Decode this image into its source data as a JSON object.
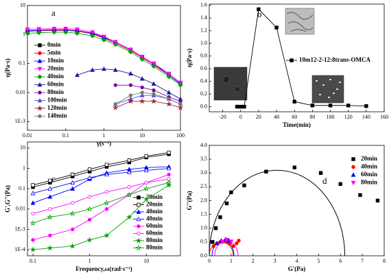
{
  "chart_data": [
    {
      "type": "line",
      "label": "a",
      "xlabel": "γ(s⁻¹)",
      "ylabel": "η(Pa·s)",
      "xlog": true,
      "ylog": true,
      "xlim": [
        0.01,
        100
      ],
      "ylim": [
        0.0005,
        10
      ],
      "xticks": [
        0.01,
        0.1,
        1,
        10,
        100
      ],
      "yticks": [
        {
          "value": 0.001,
          "label": "1E-3"
        },
        0.01,
        0.1,
        1,
        10
      ],
      "legend": "left",
      "x": [
        0.01,
        0.02,
        0.05,
        0.1,
        0.2,
        0.5,
        1,
        2,
        5,
        10,
        20,
        50,
        100
      ],
      "series": [
        {
          "name": "0min",
          "color": "#000000",
          "marker": "square",
          "values": [
            1.3,
            1.35,
            1.4,
            1.4,
            1.35,
            1.1,
            0.8,
            0.55,
            0.3,
            0.17,
            0.1,
            0.04,
            0.02
          ]
        },
        {
          "name": "5min",
          "color": "#ff0000",
          "marker": "circle",
          "values": [
            1.3,
            1.35,
            1.4,
            1.4,
            1.3,
            1.05,
            0.75,
            0.5,
            0.28,
            0.16,
            0.09,
            0.04,
            0.02
          ]
        },
        {
          "name": "10min",
          "color": "#0000ff",
          "marker": "triangle",
          "values": [
            1.35,
            1.4,
            1.45,
            1.45,
            1.35,
            1.1,
            0.8,
            0.55,
            0.3,
            0.17,
            0.1,
            0.04,
            0.02
          ]
        },
        {
          "name": "20min",
          "color": "#ff00ff",
          "marker": "triangle-down",
          "values": [
            1.5,
            1.55,
            1.6,
            1.6,
            1.5,
            1.2,
            0.85,
            0.55,
            0.3,
            0.17,
            0.1,
            0.045,
            0.022
          ]
        },
        {
          "name": "40min",
          "color": "#00a000",
          "marker": "diamond",
          "values": [
            1.1,
            1.15,
            1.2,
            1.2,
            1.1,
            0.9,
            0.65,
            0.45,
            0.25,
            0.14,
            0.08,
            0.035,
            0.018
          ]
        },
        {
          "name": "60min",
          "color": "#1a1aa0",
          "marker": "triangle",
          "values": [
            null,
            null,
            null,
            null,
            0.04,
            0.06,
            0.065,
            0.06,
            0.045,
            0.03,
            0.02,
            0.01,
            0.006
          ]
        },
        {
          "name": "80min",
          "color": "#8000a0",
          "marker": "circle",
          "values": [
            null,
            null,
            null,
            null,
            null,
            null,
            null,
            0.018,
            0.018,
            0.015,
            0.012,
            0.007,
            0.005
          ]
        },
        {
          "name": "100min",
          "color": "#5050e0",
          "marker": "triangle",
          "values": [
            null,
            null,
            null,
            null,
            null,
            null,
            null,
            0.004,
            0.006,
            0.008,
            0.008,
            0.006,
            0.004
          ]
        },
        {
          "name": "120min",
          "color": "#a02040",
          "marker": "star",
          "values": [
            null,
            null,
            null,
            null,
            null,
            null,
            null,
            0.003,
            0.005,
            0.005,
            0.005,
            0.004,
            0.003
          ]
        },
        {
          "name": "140min",
          "color": "#708070",
          "marker": "circle",
          "values": [
            null,
            null,
            null,
            null,
            null,
            null,
            null,
            0.004,
            0.008,
            0.01,
            0.009,
            0.006,
            0.004
          ]
        }
      ]
    },
    {
      "type": "line",
      "label": "b",
      "xlabel": "Time(min)",
      "ylabel": "η(Pa·s)",
      "xlog": false,
      "ylog": false,
      "xlim": [
        -35,
        160
      ],
      "ylim": [
        -0.08,
        1.62
      ],
      "xticks": [
        -20,
        0,
        20,
        40,
        60,
        80,
        100,
        120,
        140,
        160
      ],
      "yticks": [
        {
          "value": 0,
          "label": "0.0"
        },
        0.2,
        0.4,
        0.6,
        0.8,
        {
          "value": 1,
          "label": "1.0"
        },
        1.2,
        1.4,
        1.6
      ],
      "legend": "middle",
      "x": [
        -4,
        0,
        4,
        20,
        40,
        60,
        80,
        100,
        120,
        140
      ],
      "series": [
        {
          "name": "10m12-2-12:8trans-OMCA",
          "color": "#000000",
          "marker": "square",
          "values": [
            0.0,
            0.0,
            0.0,
            1.54,
            1.25,
            0.08,
            0.02,
            0.02,
            0.02,
            0.01
          ]
        }
      ]
    },
    {
      "type": "line",
      "label": "c",
      "xlabel": "Frequency,ω(rad·s⁻¹)",
      "ylabel": "G',G''(Pa)",
      "xlog": true,
      "ylog": true,
      "xlim": [
        0.08,
        40
      ],
      "ylim": [
        5e-05,
        20
      ],
      "xticks": [
        0.1,
        1,
        10
      ],
      "yticks": [
        {
          "value": 0.0001,
          "label": "1E-4"
        },
        {
          "value": 0.001,
          "label": "1E-3"
        },
        0.01,
        0.1,
        1,
        10
      ],
      "legend": "right",
      "x": [
        0.1,
        0.2,
        0.5,
        1,
        2,
        5,
        10,
        25
      ],
      "series": [
        {
          "name": "20min",
          "color": "#000000",
          "marker": "square",
          "values": [
            0.12,
            0.2,
            0.4,
            0.7,
            1.2,
            2,
            3.5,
            5
          ]
        },
        {
          "name": "20min",
          "color": "#000000",
          "marker": "square-open",
          "values": [
            0.15,
            0.25,
            0.5,
            0.9,
            1.5,
            2.5,
            4,
            6
          ]
        },
        {
          "name": "40min",
          "color": "#0000ff",
          "marker": "triangle",
          "values": [
            0.02,
            0.04,
            0.1,
            0.3,
            0.6,
            0.9,
            1.1,
            1.2
          ]
        },
        {
          "name": "40min",
          "color": "#0000ff",
          "marker": "triangle-open",
          "values": [
            0.06,
            0.1,
            0.2,
            0.35,
            0.5,
            0.65,
            0.8,
            1
          ]
        },
        {
          "name": "60min",
          "color": "#ff00ff",
          "marker": "circle",
          "values": [
            0.0003,
            0.0005,
            0.001,
            0.003,
            0.01,
            0.05,
            0.2,
            0.5
          ]
        },
        {
          "name": "60min",
          "color": "#ff00ff",
          "marker": "circle-open",
          "values": [
            0.006,
            0.01,
            0.02,
            0.04,
            0.07,
            0.12,
            0.2,
            0.3
          ]
        },
        {
          "name": "80min",
          "color": "#00a000",
          "marker": "star",
          "values": [
            0.0001,
            0.00012,
            0.00015,
            0.0003,
            0.0005,
            0.004,
            0.03,
            0.15
          ]
        },
        {
          "name": "80min",
          "color": "#00a000",
          "marker": "star-open",
          "values": [
            0.002,
            0.004,
            0.006,
            0.01,
            0.02,
            0.05,
            0.1,
            0.2
          ]
        }
      ]
    },
    {
      "type": "scatter",
      "label": "d",
      "xlabel": "G'(Pa)",
      "ylabel": "G''(Pa)",
      "xlog": false,
      "ylog": false,
      "xlim": [
        0,
        8
      ],
      "ylim": [
        0,
        4
      ],
      "xticks": [
        0,
        1,
        2,
        3,
        4,
        5,
        6,
        7,
        8
      ],
      "yticks": [
        {
          "value": 0,
          "label": "0.0"
        },
        0.5,
        {
          "value": 1,
          "label": "1.0"
        },
        1.5,
        {
          "value": 2,
          "label": "2.0"
        },
        2.5,
        {
          "value": 3,
          "label": "3.0"
        },
        3.5,
        {
          "value": 4,
          "label": "4.0"
        }
      ],
      "legend": "upper right",
      "series": [
        {
          "name": "20min",
          "color": "#000000",
          "marker": "square",
          "x": [
            0.15,
            0.3,
            0.5,
            0.8,
            1.0,
            1.6,
            2.6,
            3.9,
            5.1,
            6.0,
            6.9,
            7.7
          ],
          "values": [
            0.5,
            1.0,
            1.4,
            1.9,
            2.3,
            2.55,
            3.05,
            3.2,
            3.0,
            2.6,
            2.2,
            2.0
          ]
        },
        {
          "name": "40min",
          "color": "#ff0000",
          "marker": "circle",
          "x": [
            0.2,
            0.35,
            0.5,
            0.65,
            0.8,
            0.95,
            1.1,
            1.25,
            1.35
          ],
          "values": [
            0.35,
            0.45,
            0.5,
            0.52,
            0.5,
            0.45,
            0.35,
            0.45,
            0.55
          ]
        },
        {
          "name": "60min",
          "color": "#0000ff",
          "marker": "triangle",
          "x": [
            0.35,
            0.55,
            0.75,
            0.9
          ],
          "values": [
            0.45,
            0.55,
            0.6,
            0.55
          ]
        },
        {
          "name": "80min",
          "color": "#ff00ff",
          "marker": "triangle-down",
          "x": [
            0.6,
            0.8,
            1.0
          ],
          "values": [
            0.5,
            0.58,
            0.52
          ]
        }
      ]
    }
  ]
}
